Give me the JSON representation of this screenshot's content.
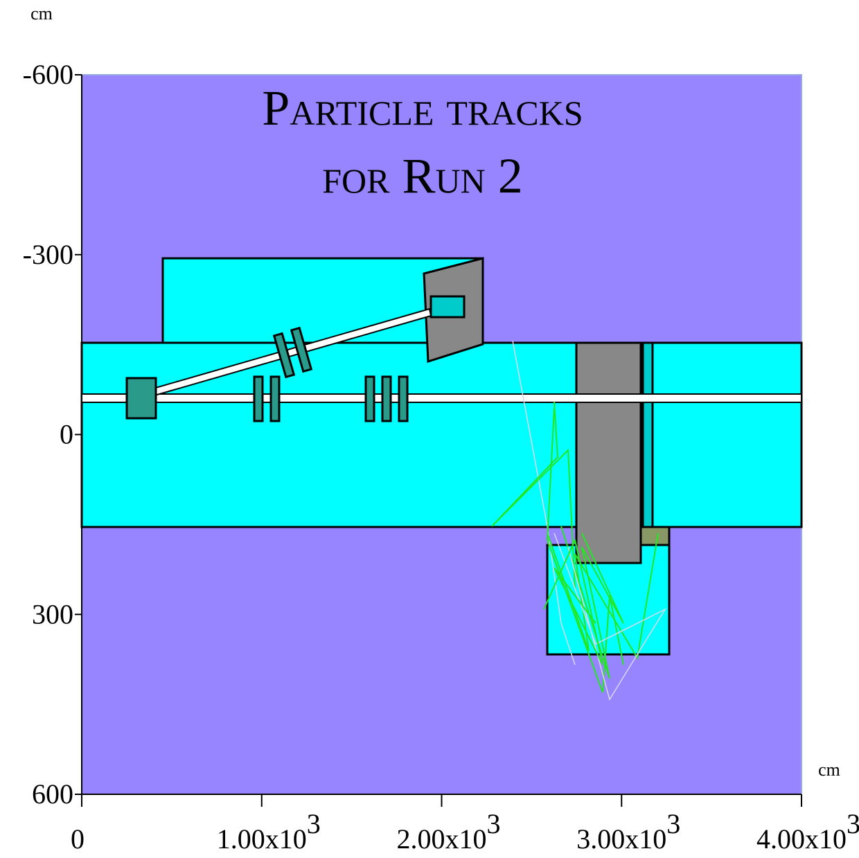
{
  "title": [
    "Particle tracks",
    "for Run 2"
  ],
  "y_axis": {
    "unit": "cm",
    "lim": [
      -600,
      600
    ],
    "ticks": [
      -600,
      -300,
      0,
      300,
      600
    ]
  },
  "x_axis": {
    "unit": "cm",
    "lim": [
      0,
      4000
    ],
    "ticks": [
      0,
      {
        "value": 1000,
        "label": "1.00x10",
        "exponent": "3"
      },
      {
        "value": 2000,
        "label": "2.00x10",
        "exponent": "3"
      },
      {
        "value": 3000,
        "label": "3.00x10",
        "exponent": "3"
      },
      {
        "value": 4000,
        "label": "4.00x10",
        "exponent": "3"
      }
    ]
  }
}
